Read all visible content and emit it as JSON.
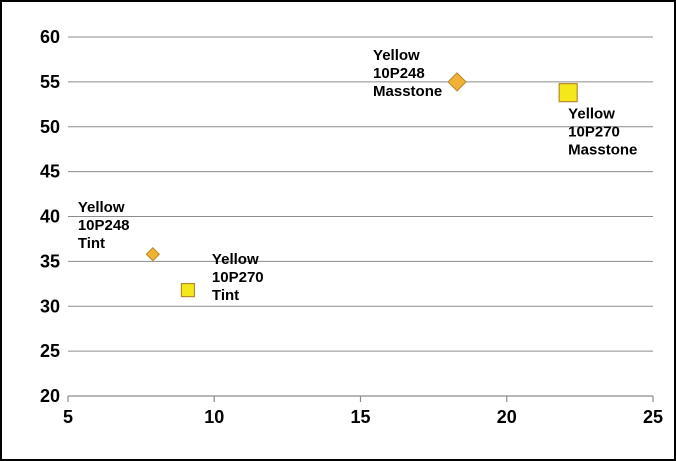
{
  "chart_data": {
    "type": "scatter",
    "title": "",
    "xlabel": "",
    "ylabel": "",
    "xlim": [
      5,
      25
    ],
    "ylim": [
      20,
      60
    ],
    "xticks": [
      5,
      10,
      15,
      20,
      25
    ],
    "yticks": [
      20,
      25,
      30,
      35,
      40,
      45,
      50,
      55,
      60
    ],
    "grid": "horizontal",
    "legend": "none",
    "colors": {
      "diamond": "#f2b134",
      "square": "#f5e81a",
      "outline": "#b58a2b"
    },
    "points": [
      {
        "label": [
          "Yellow",
          "10P248",
          "Masstone"
        ],
        "x": 18.3,
        "y": 55.0,
        "marker": "diamond",
        "size": "large"
      },
      {
        "label": [
          "Yellow",
          "10P270",
          "Masstone"
        ],
        "x": 22.1,
        "y": 53.8,
        "marker": "square",
        "size": "large"
      },
      {
        "label": [
          "Yellow",
          "10P248",
          "Tint"
        ],
        "x": 7.9,
        "y": 35.8,
        "marker": "diamond",
        "size": "small"
      },
      {
        "label": [
          "Yellow",
          "10P270",
          "Tint"
        ],
        "x": 9.1,
        "y": 31.8,
        "marker": "square",
        "size": "small"
      }
    ]
  }
}
